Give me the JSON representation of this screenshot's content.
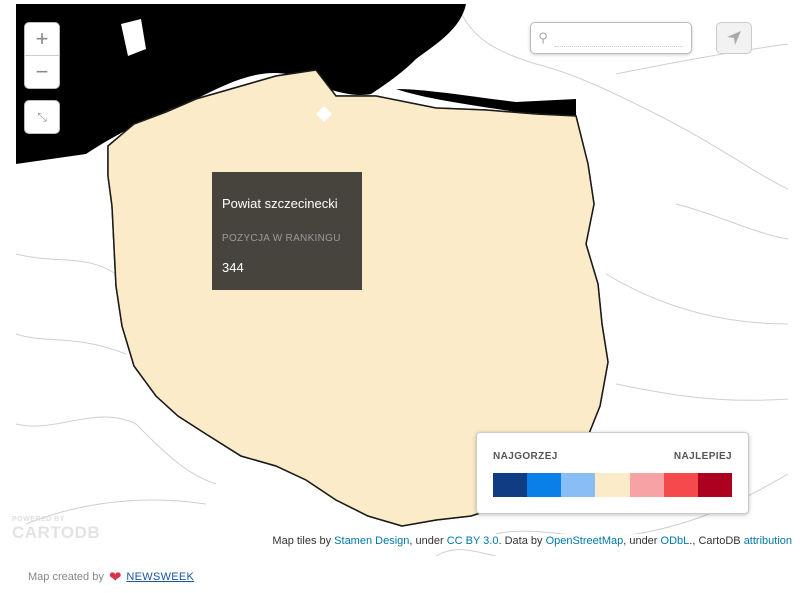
{
  "zoom": {
    "in_label": "+",
    "out_label": "−"
  },
  "fullscreen": {
    "icon": "fullscreen-icon"
  },
  "search": {
    "placeholder": "",
    "icon": "search-icon"
  },
  "locate": {
    "icon": "locate-arrow-icon"
  },
  "tooltip": {
    "name": "Powiat szczecinecki",
    "label": "POZYCJA W RANKINGU",
    "value": "344"
  },
  "legend": {
    "left_label": "NAJGORZEJ",
    "right_label": "NAJLEPIEJ",
    "colors": [
      "#0f3c82",
      "#0b7fe8",
      "#89bdf5",
      "#fbebc8",
      "#f7a3a6",
      "#f44a4d",
      "#ad0020"
    ]
  },
  "branding": {
    "small": "POWERED BY",
    "big": "CARTODB"
  },
  "attribution": {
    "t1": "Map tiles by ",
    "l1": "Stamen Design",
    "t2": ", under ",
    "l2": "CC BY 3.0",
    "t3": ". Data by ",
    "l3": "OpenStreetMap",
    "t4": ", under ",
    "l4": "ODbL",
    "t5": "., CartoDB ",
    "l5": "attribution"
  },
  "footer": {
    "text": "Map created by",
    "link": "NEWSWEEK"
  },
  "colors": {
    "sea": "#000000",
    "border": "#1a1a1a",
    "background": "#ffffff"
  }
}
